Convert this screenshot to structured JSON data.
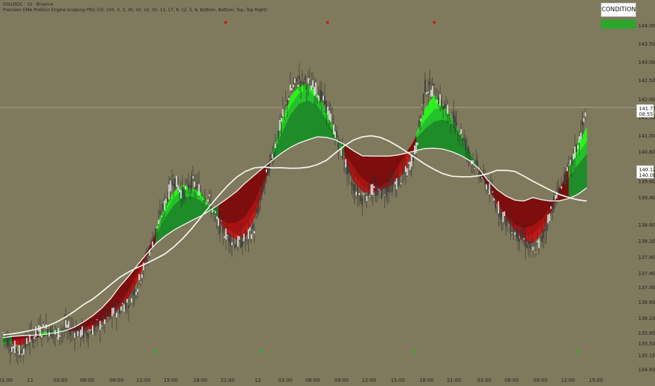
{
  "header": {
    "line1": "SOLUSDC · 1S · Binance",
    "line2": "Precision EMA Position Engine Scalping PRO (50, 100, 3, 3, 30, 50, 16, 30, 13, 17, 8, 12, 5, 8, Bottom, Bottom, Top, Top Right)"
  },
  "condition": {
    "label": "CONDITION",
    "color": "#2ea52b"
  },
  "colors": {
    "background": "#7f7a5e",
    "bull_light": "#2cf11f",
    "bull_mid": "#25c12a",
    "bull_dark": "#1e8c28",
    "bear_dark": "#7e0d0d",
    "bear_mid": "#a81212",
    "bear_light": "#c31a17",
    "ema_line": "#f5f5ee",
    "candle": "#d8d8d8",
    "dot_red": "#c81818",
    "dot_green": "#25b825"
  },
  "chart_data": {
    "type": "candlestick",
    "y_ticks": [
      "144.00",
      "143.50",
      "143.00",
      "142.50",
      "142.00",
      "141.50",
      "141.00",
      "140.60",
      "140.00",
      "139.80",
      "139.40",
      "138.60",
      "138.20",
      "137.80",
      "137.40",
      "137.00",
      "136.60",
      "136.20",
      "135.80",
      "135.50",
      "135.15",
      "134.83"
    ],
    "x_ticks": [
      "21:00",
      "11",
      "03:00",
      "06:00",
      "09:00",
      "12:00",
      "15:00",
      "18:00",
      "21:00",
      "12",
      "03:00",
      "06:00",
      "09:00",
      "12:00",
      "15:00",
      "18:00",
      "21:00",
      "03:00",
      "06:00",
      "09:00",
      "12:00",
      "15:00"
    ],
    "last_price": "141.77",
    "countdown": "08:55",
    "ema_value": "140.12",
    "ema_value2": "140.00",
    "close_series": [
      135.95,
      135.6,
      135.45,
      135.8,
      136.0,
      136.05,
      135.9,
      136.1,
      136.0,
      135.95,
      136.05,
      136.2,
      136.4,
      136.6,
      136.8,
      137.2,
      137.9,
      138.6,
      139.3,
      140.0,
      139.6,
      139.9,
      139.7,
      139.4,
      138.8,
      138.5,
      138.3,
      138.4,
      138.7,
      139.8,
      140.6,
      141.5,
      142.3,
      142.6,
      142.5,
      142.3,
      141.9,
      141.2,
      140.5,
      139.8,
      139.5,
      139.7,
      139.6,
      139.8,
      139.9,
      140.2,
      140.8,
      142.4,
      142.3,
      141.9,
      141.6,
      141.2,
      140.6,
      140.2,
      139.8,
      139.3,
      138.9,
      138.6,
      138.4,
      138.1,
      138.4,
      139.2,
      139.7,
      140.2,
      140.9,
      141.77
    ],
    "markers": [
      {
        "type": "sell",
        "x_tick": "21:00",
        "label": "red dot top"
      },
      {
        "type": "sell",
        "x_tick": "03:00",
        "label": "red dot top"
      },
      {
        "type": "sell",
        "x_tick": "18:00",
        "label": "red dot top"
      },
      {
        "type": "buy",
        "x_tick": "12:00",
        "label": "green dot bottom"
      },
      {
        "type": "buy",
        "x_tick": "21:00",
        "label": "green dot bottom"
      },
      {
        "type": "buy",
        "x_tick": "15:00",
        "label": "green dot bottom"
      },
      {
        "type": "buy",
        "x_tick": "09:00",
        "label": "green dot bottom"
      }
    ]
  }
}
